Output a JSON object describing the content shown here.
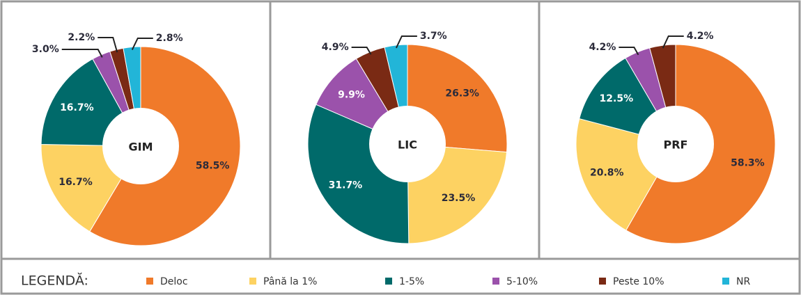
{
  "legend": {
    "title": "LEGENDĂ:",
    "items": [
      "Deloc",
      "Până la 1%",
      "1-5%",
      "5-10%",
      "Peste 10%",
      "NR"
    ],
    "colors": [
      "#f07a2a",
      "#fdd262",
      "#006a6a",
      "#9b52ab",
      "#7a2a14",
      "#22b5d8"
    ]
  },
  "chart_data": [
    {
      "type": "pie",
      "label": "GIM",
      "values": [
        58.5,
        16.7,
        16.7,
        3.0,
        2.2,
        2.8
      ],
      "value_labels": [
        "58.5%",
        "16.7%",
        "16.7%",
        "3.0%",
        "2.2%",
        "2.8%"
      ]
    },
    {
      "type": "pie",
      "label": "LIC",
      "values": [
        26.3,
        23.5,
        31.7,
        9.9,
        4.9,
        3.7
      ],
      "value_labels": [
        "26.3%",
        "23.5%",
        "31.7%",
        "9.9%",
        "4.9%",
        "3.7%"
      ]
    },
    {
      "type": "pie",
      "label": "PRF",
      "values": [
        58.3,
        20.8,
        12.5,
        4.2,
        4.2,
        null
      ],
      "value_labels": [
        "58.3%",
        "20.8%",
        "12.5%",
        "4.2%",
        "4.2%",
        null
      ]
    }
  ]
}
